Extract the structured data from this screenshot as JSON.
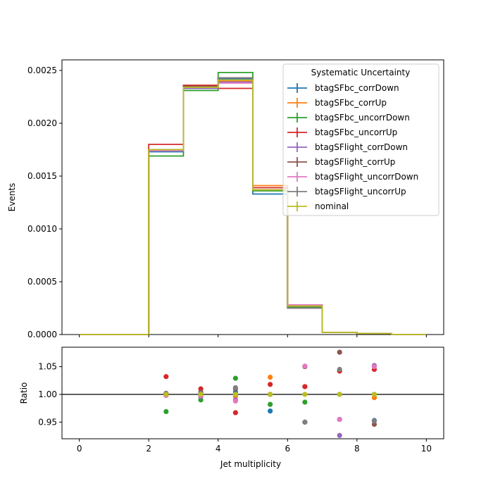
{
  "chart_data": [
    {
      "type": "line",
      "drawstyle": "step-histogram",
      "ylabel": "Events",
      "xlim": [
        -0.5,
        10.5
      ],
      "ylim": [
        0,
        0.0026
      ],
      "bin_edges": [
        0,
        1,
        2,
        3,
        4,
        5,
        6,
        7,
        8,
        9,
        10
      ],
      "yticks": [
        0.0,
        0.0005,
        0.001,
        0.0015,
        0.002,
        0.0025
      ],
      "ytick_labels": [
        "0.0000",
        "0.0005",
        "0.0010",
        "0.0015",
        "0.0020",
        "0.0025"
      ],
      "legend": {
        "title": "Systematic Uncertainty",
        "placement": "top-right"
      },
      "series": [
        {
          "name": "btagSFbc_corrDown",
          "color": "#1f77b4",
          "values": [
            0,
            0,
            0.00173,
            0.00233,
            0.00242,
            0.00133,
            0.00026,
            2e-05,
            1e-05,
            0
          ]
        },
        {
          "name": "btagSFbc_corrUp",
          "color": "#ff7f0e",
          "values": [
            0,
            0,
            0.00175,
            0.00235,
            0.0024,
            0.00141,
            0.00027,
            2e-05,
            1e-05,
            0
          ]
        },
        {
          "name": "btagSFbc_uncorrDown",
          "color": "#2ca02c",
          "values": [
            0,
            0,
            0.00169,
            0.00231,
            0.00248,
            0.00136,
            0.00026,
            2e-05,
            1e-05,
            0
          ]
        },
        {
          "name": "btagSFbc_uncorrUp",
          "color": "#d62728",
          "values": [
            0,
            0,
            0.0018,
            0.00236,
            0.00233,
            0.00139,
            0.00027,
            2e-05,
            1e-05,
            0
          ]
        },
        {
          "name": "btagSFlight_corrDown",
          "color": "#9467bd",
          "values": [
            0,
            0,
            0.00174,
            0.00233,
            0.00239,
            0.00137,
            0.00025,
            2e-05,
            1e-05,
            0
          ]
        },
        {
          "name": "btagSFlight_corrUp",
          "color": "#8c564b",
          "values": [
            0,
            0,
            0.00175,
            0.00235,
            0.00243,
            0.00137,
            0.00028,
            2e-05,
            1e-05,
            0
          ]
        },
        {
          "name": "btagSFlight_uncorrDown",
          "color": "#e377c2",
          "values": [
            0,
            0,
            0.00174,
            0.00234,
            0.00238,
            0.00137,
            0.00028,
            2e-05,
            1e-05,
            0
          ]
        },
        {
          "name": "btagSFlight_uncorrUp",
          "color": "#7f7f7f",
          "values": [
            0,
            0,
            0.00175,
            0.00234,
            0.00243,
            0.00137,
            0.00025,
            2e-05,
            1e-05,
            0
          ]
        },
        {
          "name": "nominal",
          "color": "#bcbd22",
          "values": [
            0,
            0,
            0.00175,
            0.00234,
            0.00241,
            0.00137,
            0.00027,
            2e-05,
            1e-05,
            0
          ]
        }
      ]
    },
    {
      "type": "scatter",
      "xlabel": "Jet multiplicity",
      "ylabel": "Ratio",
      "xlim": [
        -0.5,
        10.5
      ],
      "ylim": [
        0.92,
        1.085
      ],
      "xticks": [
        0,
        2,
        4,
        6,
        8,
        10
      ],
      "yticks": [
        0.95,
        1.0,
        1.05
      ],
      "ytick_labels": [
        "0.95",
        "1.00",
        "1.05"
      ],
      "reference_line": 1.0,
      "x": [
        2.5,
        3.5,
        4.5,
        5.5,
        6.5,
        7.5,
        8.5
      ],
      "series": [
        {
          "name": "btagSFbc_corrDown",
          "color": "#1f77b4",
          "values": [
            1.0,
            0.997,
            1.004,
            0.97,
            0.95,
            0.955,
            0.953
          ]
        },
        {
          "name": "btagSFbc_corrUp",
          "color": "#ff7f0e",
          "values": [
            1.002,
            1.003,
            0.996,
            1.031,
            1.014,
            1.042,
            0.994
          ]
        },
        {
          "name": "btagSFbc_uncorrDown",
          "color": "#2ca02c",
          "values": [
            0.969,
            0.99,
            1.029,
            0.982,
            0.986,
            1.0,
            1.0
          ]
        },
        {
          "name": "btagSFbc_uncorrUp",
          "color": "#d62728",
          "values": [
            1.032,
            1.01,
            0.967,
            1.018,
            1.014,
            1.042,
            1.045
          ]
        },
        {
          "name": "btagSFlight_corrDown",
          "color": "#9467bd",
          "values": [
            0.999,
            0.996,
            0.99,
            1.0,
            0.95,
            0.926,
            1.052
          ]
        },
        {
          "name": "btagSFlight_corrUp",
          "color": "#8c564b",
          "values": [
            1.001,
            1.004,
            1.01,
            1.0,
            1.05,
            1.076,
            0.946
          ]
        },
        {
          "name": "btagSFlight_uncorrDown",
          "color": "#e377c2",
          "values": [
            0.998,
            0.998,
            0.988,
            1.0,
            1.051,
            0.955,
            1.05
          ]
        },
        {
          "name": "btagSFlight_uncorrUp",
          "color": "#7f7f7f",
          "values": [
            1.002,
            1.002,
            1.012,
            1.0,
            0.95,
            1.045,
            0.952
          ]
        },
        {
          "name": "nominal",
          "color": "#bcbd22",
          "values": [
            1.0,
            1.0,
            1.0,
            1.0,
            1.0,
            1.0,
            1.0
          ]
        }
      ]
    }
  ]
}
